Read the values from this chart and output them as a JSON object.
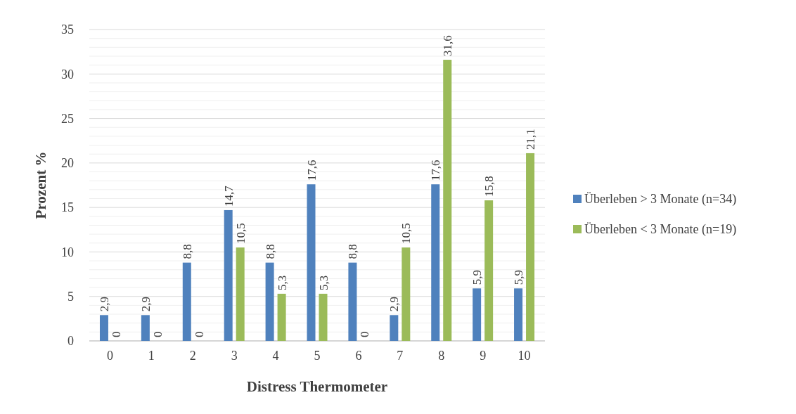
{
  "chart_data": {
    "type": "bar",
    "xlabel": "Distress Thermometer",
    "ylabel": "Prozent %",
    "categories": [
      "0",
      "1",
      "2",
      "3",
      "4",
      "5",
      "6",
      "7",
      "8",
      "9",
      "10"
    ],
    "series": [
      {
        "name": "Überleben > 3 Monate (n=34)",
        "color": "#4f81bd",
        "values": [
          2.9,
          2.9,
          8.8,
          14.7,
          8.8,
          17.6,
          8.8,
          2.9,
          17.6,
          5.9,
          5.9
        ],
        "value_labels": [
          "2,9",
          "2,9",
          "8,8",
          "14,7",
          "8,8",
          "17,6",
          "8,8",
          "2,9",
          "17,6",
          "5,9",
          "5,9"
        ]
      },
      {
        "name": "Überleben < 3 Monate (n=19)",
        "color": "#9bbb59",
        "values": [
          0,
          0,
          0,
          10.5,
          5.3,
          5.3,
          0,
          10.5,
          31.6,
          15.8,
          21.1
        ],
        "value_labels": [
          "0",
          "0",
          "0",
          "10,5",
          "5,3",
          "5,3",
          "0",
          "10,5",
          "31,6",
          "15,8",
          "21,1"
        ]
      }
    ],
    "ylim": [
      0,
      35
    ],
    "yticks": [
      0,
      {
        "value": 1,
        "label": null
      },
      {
        "value": 2,
        "label": null
      },
      {
        "value": 3,
        "label": null
      },
      {
        "value": 4,
        "label": null
      },
      5,
      {
        "value": 6,
        "label": null
      },
      {
        "value": 7,
        "label": null
      },
      {
        "value": 8,
        "label": null
      },
      {
        "value": 9,
        "label": null
      },
      10,
      {
        "value": 11,
        "label": null
      },
      {
        "value": 12,
        "label": null
      },
      {
        "value": 13,
        "label": null
      },
      {
        "value": 14,
        "label": null
      },
      15,
      {
        "value": 16,
        "label": null
      },
      {
        "value": 17,
        "label": null
      },
      {
        "value": 18,
        "label": null
      },
      {
        "value": 19,
        "label": null
      },
      20,
      {
        "value": 21,
        "label": null
      },
      {
        "value": 22,
        "label": null
      },
      {
        "value": 23,
        "label": null
      },
      {
        "value": 24,
        "label": null
      },
      25,
      {
        "value": 26,
        "label": null
      },
      {
        "value": 27,
        "label": null
      },
      {
        "value": 28,
        "label": null
      },
      {
        "value": 29,
        "label": null
      },
      30,
      {
        "value": 31,
        "label": null
      },
      {
        "value": 32,
        "label": null
      },
      {
        "value": 33,
        "label": null
      },
      {
        "value": 34,
        "label": null
      },
      35
    ],
    "grid": "y",
    "legend": "right"
  }
}
